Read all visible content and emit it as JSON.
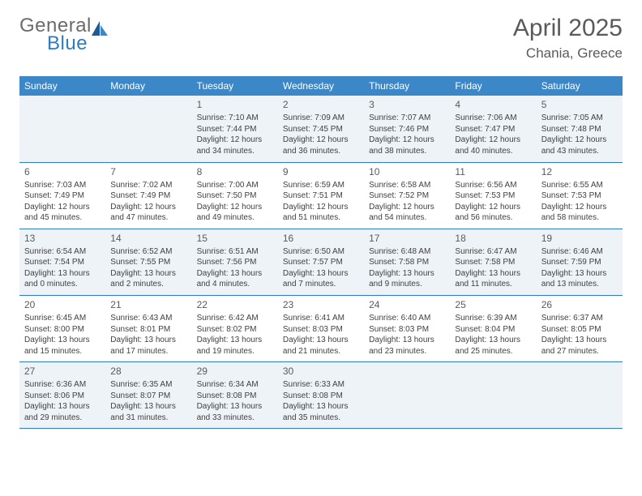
{
  "logo": {
    "general": "General",
    "blue": "Blue"
  },
  "title": "April 2025",
  "location": "Chania, Greece",
  "header_bg": "#3b87c8",
  "alt_row_bg": "#eef3f8",
  "border_color": "#2f7bbf",
  "text_color": "#414141",
  "dayNames": [
    "Sunday",
    "Monday",
    "Tuesday",
    "Wednesday",
    "Thursday",
    "Friday",
    "Saturday"
  ],
  "weeks": [
    [
      null,
      null,
      {
        "n": "1",
        "sr": "Sunrise: 7:10 AM",
        "ss": "Sunset: 7:44 PM",
        "d1": "Daylight: 12 hours",
        "d2": "and 34 minutes."
      },
      {
        "n": "2",
        "sr": "Sunrise: 7:09 AM",
        "ss": "Sunset: 7:45 PM",
        "d1": "Daylight: 12 hours",
        "d2": "and 36 minutes."
      },
      {
        "n": "3",
        "sr": "Sunrise: 7:07 AM",
        "ss": "Sunset: 7:46 PM",
        "d1": "Daylight: 12 hours",
        "d2": "and 38 minutes."
      },
      {
        "n": "4",
        "sr": "Sunrise: 7:06 AM",
        "ss": "Sunset: 7:47 PM",
        "d1": "Daylight: 12 hours",
        "d2": "and 40 minutes."
      },
      {
        "n": "5",
        "sr": "Sunrise: 7:05 AM",
        "ss": "Sunset: 7:48 PM",
        "d1": "Daylight: 12 hours",
        "d2": "and 43 minutes."
      }
    ],
    [
      {
        "n": "6",
        "sr": "Sunrise: 7:03 AM",
        "ss": "Sunset: 7:49 PM",
        "d1": "Daylight: 12 hours",
        "d2": "and 45 minutes."
      },
      {
        "n": "7",
        "sr": "Sunrise: 7:02 AM",
        "ss": "Sunset: 7:49 PM",
        "d1": "Daylight: 12 hours",
        "d2": "and 47 minutes."
      },
      {
        "n": "8",
        "sr": "Sunrise: 7:00 AM",
        "ss": "Sunset: 7:50 PM",
        "d1": "Daylight: 12 hours",
        "d2": "and 49 minutes."
      },
      {
        "n": "9",
        "sr": "Sunrise: 6:59 AM",
        "ss": "Sunset: 7:51 PM",
        "d1": "Daylight: 12 hours",
        "d2": "and 51 minutes."
      },
      {
        "n": "10",
        "sr": "Sunrise: 6:58 AM",
        "ss": "Sunset: 7:52 PM",
        "d1": "Daylight: 12 hours",
        "d2": "and 54 minutes."
      },
      {
        "n": "11",
        "sr": "Sunrise: 6:56 AM",
        "ss": "Sunset: 7:53 PM",
        "d1": "Daylight: 12 hours",
        "d2": "and 56 minutes."
      },
      {
        "n": "12",
        "sr": "Sunrise: 6:55 AM",
        "ss": "Sunset: 7:53 PM",
        "d1": "Daylight: 12 hours",
        "d2": "and 58 minutes."
      }
    ],
    [
      {
        "n": "13",
        "sr": "Sunrise: 6:54 AM",
        "ss": "Sunset: 7:54 PM",
        "d1": "Daylight: 13 hours",
        "d2": "and 0 minutes."
      },
      {
        "n": "14",
        "sr": "Sunrise: 6:52 AM",
        "ss": "Sunset: 7:55 PM",
        "d1": "Daylight: 13 hours",
        "d2": "and 2 minutes."
      },
      {
        "n": "15",
        "sr": "Sunrise: 6:51 AM",
        "ss": "Sunset: 7:56 PM",
        "d1": "Daylight: 13 hours",
        "d2": "and 4 minutes."
      },
      {
        "n": "16",
        "sr": "Sunrise: 6:50 AM",
        "ss": "Sunset: 7:57 PM",
        "d1": "Daylight: 13 hours",
        "d2": "and 7 minutes."
      },
      {
        "n": "17",
        "sr": "Sunrise: 6:48 AM",
        "ss": "Sunset: 7:58 PM",
        "d1": "Daylight: 13 hours",
        "d2": "and 9 minutes."
      },
      {
        "n": "18",
        "sr": "Sunrise: 6:47 AM",
        "ss": "Sunset: 7:58 PM",
        "d1": "Daylight: 13 hours",
        "d2": "and 11 minutes."
      },
      {
        "n": "19",
        "sr": "Sunrise: 6:46 AM",
        "ss": "Sunset: 7:59 PM",
        "d1": "Daylight: 13 hours",
        "d2": "and 13 minutes."
      }
    ],
    [
      {
        "n": "20",
        "sr": "Sunrise: 6:45 AM",
        "ss": "Sunset: 8:00 PM",
        "d1": "Daylight: 13 hours",
        "d2": "and 15 minutes."
      },
      {
        "n": "21",
        "sr": "Sunrise: 6:43 AM",
        "ss": "Sunset: 8:01 PM",
        "d1": "Daylight: 13 hours",
        "d2": "and 17 minutes."
      },
      {
        "n": "22",
        "sr": "Sunrise: 6:42 AM",
        "ss": "Sunset: 8:02 PM",
        "d1": "Daylight: 13 hours",
        "d2": "and 19 minutes."
      },
      {
        "n": "23",
        "sr": "Sunrise: 6:41 AM",
        "ss": "Sunset: 8:03 PM",
        "d1": "Daylight: 13 hours",
        "d2": "and 21 minutes."
      },
      {
        "n": "24",
        "sr": "Sunrise: 6:40 AM",
        "ss": "Sunset: 8:03 PM",
        "d1": "Daylight: 13 hours",
        "d2": "and 23 minutes."
      },
      {
        "n": "25",
        "sr": "Sunrise: 6:39 AM",
        "ss": "Sunset: 8:04 PM",
        "d1": "Daylight: 13 hours",
        "d2": "and 25 minutes."
      },
      {
        "n": "26",
        "sr": "Sunrise: 6:37 AM",
        "ss": "Sunset: 8:05 PM",
        "d1": "Daylight: 13 hours",
        "d2": "and 27 minutes."
      }
    ],
    [
      {
        "n": "27",
        "sr": "Sunrise: 6:36 AM",
        "ss": "Sunset: 8:06 PM",
        "d1": "Daylight: 13 hours",
        "d2": "and 29 minutes."
      },
      {
        "n": "28",
        "sr": "Sunrise: 6:35 AM",
        "ss": "Sunset: 8:07 PM",
        "d1": "Daylight: 13 hours",
        "d2": "and 31 minutes."
      },
      {
        "n": "29",
        "sr": "Sunrise: 6:34 AM",
        "ss": "Sunset: 8:08 PM",
        "d1": "Daylight: 13 hours",
        "d2": "and 33 minutes."
      },
      {
        "n": "30",
        "sr": "Sunrise: 6:33 AM",
        "ss": "Sunset: 8:08 PM",
        "d1": "Daylight: 13 hours",
        "d2": "and 35 minutes."
      },
      null,
      null,
      null
    ]
  ]
}
